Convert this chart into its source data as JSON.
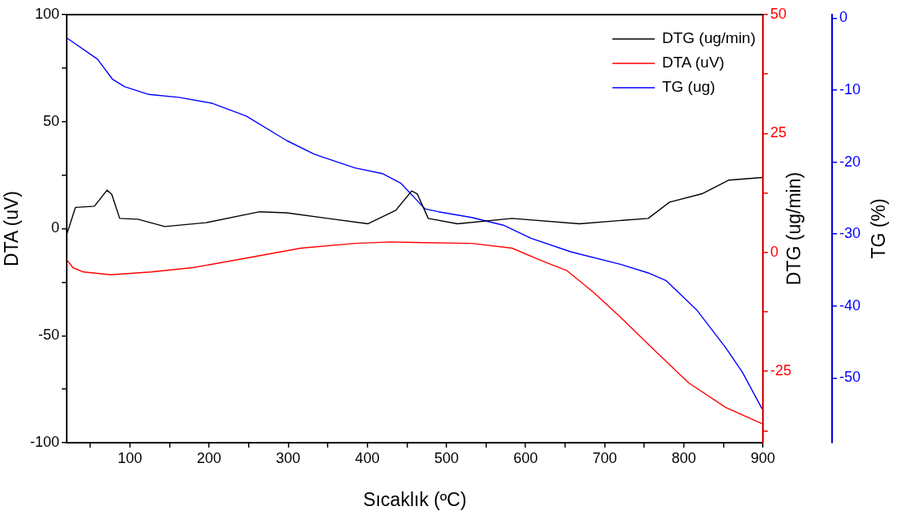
{
  "chart_data": {
    "type": "line",
    "xlabel": "Sıcaklık (ºC)",
    "ylabel": "DTA (uV)",
    "y2label": "DTG (ug/min)",
    "y3label": "TG (%)",
    "xlim": [
      20,
      900
    ],
    "xticks": [
      {
        "value": 50,
        "label": null
      },
      100,
      {
        "value": 150,
        "label": null
      },
      200,
      {
        "value": 250,
        "label": null
      },
      300,
      {
        "value": 350,
        "label": null
      },
      400,
      {
        "value": 450,
        "label": null
      },
      500,
      {
        "value": 550,
        "label": null
      },
      600,
      {
        "value": 650,
        "label": null
      },
      700,
      {
        "value": 750,
        "label": null
      },
      800,
      {
        "value": 850,
        "label": null
      },
      900
    ],
    "ylim": [
      -100,
      100
    ],
    "yticks": [
      -100,
      {
        "value": -75,
        "label": null
      },
      -50,
      {
        "value": -25,
        "label": null
      },
      0,
      {
        "value": 25,
        "label": null
      },
      50,
      {
        "value": 75,
        "label": null
      },
      100
    ],
    "y2lim": [
      -40,
      50
    ],
    "y2ticks": [
      {
        "value": -37.5,
        "label": null
      },
      -25,
      {
        "value": -12.5,
        "label": null
      },
      0,
      {
        "value": 12.5,
        "label": null
      },
      25,
      {
        "value": 37.5,
        "label": null
      },
      50
    ],
    "y3lim": [
      -59,
      0.5
    ],
    "y3ticks": [
      -50,
      -40,
      -30,
      -20,
      -10,
      0
    ],
    "legend": "top right",
    "series": [
      {
        "name": "DTG (ug/min)",
        "color": "#000000",
        "axis": "y",
        "x": [
          20,
          31,
          55,
          71,
          77,
          87,
          110,
          144,
          196,
          264,
          298,
          350,
          401,
          436,
          456,
          463,
          477,
          514,
          583,
          668,
          755,
          782,
          823,
          857,
          899
        ],
        "values": [
          -2.8,
          9.9,
          10.5,
          18,
          16,
          4.8,
          4.4,
          1.0,
          2.8,
          7.9,
          7.4,
          4.8,
          2.3,
          8.6,
          17.6,
          16.3,
          4.8,
          2.3,
          4.8,
          2.3,
          4.8,
          12.4,
          16.3,
          22.7,
          23.9
        ]
      },
      {
        "name": "DTA (uV)",
        "color": "#ff0000",
        "axis": "y2",
        "x": [
          20,
          28,
          41,
          76,
          127,
          179,
          247,
          316,
          384,
          429,
          460,
          532,
          583,
          617,
          652,
          686,
          720,
          755,
          806,
          853,
          899
        ],
        "values": [
          -1.5,
          -3.2,
          -4.1,
          -4.7,
          -4.1,
          -3.2,
          -1.2,
          0.9,
          1.9,
          2.2,
          2.1,
          1.9,
          0.9,
          -1.5,
          -3.8,
          -8.4,
          -13.6,
          -19.3,
          -27.4,
          -32.6,
          -36.0
        ]
      },
      {
        "name": "TG (ug)",
        "color": "#0000ff",
        "axis": "y3",
        "x": [
          21,
          59,
          78,
          93,
          124,
          162,
          203,
          247,
          298,
          333,
          384,
          419,
          442,
          460,
          473,
          490,
          532,
          573,
          607,
          658,
          720,
          755,
          778,
          816,
          853,
          874,
          899
        ],
        "values": [
          -2.8,
          -5.7,
          -8.5,
          -9.5,
          -10.6,
          -11.0,
          -11.8,
          -13.6,
          -17.0,
          -18.9,
          -20.8,
          -21.6,
          -22.9,
          -25.0,
          -26.5,
          -26.9,
          -27.7,
          -28.8,
          -30.6,
          -32.5,
          -34.2,
          -35.4,
          -36.5,
          -40.5,
          -45.8,
          -49.2,
          -54.3
        ]
      }
    ]
  }
}
